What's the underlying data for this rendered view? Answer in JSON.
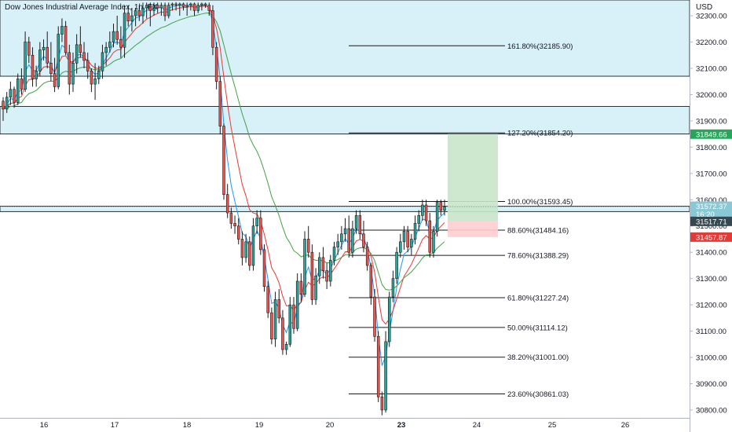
{
  "header": {
    "title": "Dow Jones Industrial Average Index, 1h, FX",
    "currency": "USD"
  },
  "chart_data": {
    "type": "candlestick",
    "title": "Dow Jones Industrial Average Index, 1h, FX",
    "ylim": [
      30770,
      32360
    ],
    "y_ticks": [
      {
        "value": 32300,
        "label": "32300.00"
      },
      {
        "value": 32200,
        "label": "32200.00"
      },
      {
        "value": 32100,
        "label": "32100.00"
      },
      {
        "value": 32000,
        "label": "32000.00"
      },
      {
        "value": 31900,
        "label": "31900.00"
      },
      {
        "value": 31800,
        "label": "31800.00"
      },
      {
        "value": 31700,
        "label": "31700.00"
      },
      {
        "value": 31600,
        "label": "31600.00"
      },
      {
        "value": 31500,
        "label": "31500.00"
      },
      {
        "value": 31400,
        "label": "31400.00"
      },
      {
        "value": 31300,
        "label": "31300.00"
      },
      {
        "value": 31200,
        "label": "31200.00"
      },
      {
        "value": 31100,
        "label": "31100.00"
      },
      {
        "value": 31000,
        "label": "31000.00"
      },
      {
        "value": 30900,
        "label": "30900.00"
      },
      {
        "value": 30800,
        "label": "30800.00"
      }
    ],
    "x_ticks": [
      "16",
      "17",
      "18",
      "19",
      "20",
      "23",
      "24",
      "25",
      "26"
    ],
    "x_ticks_bold": [
      "23"
    ],
    "fib_levels": [
      {
        "label": "161.80%(32185.90)",
        "value": 32185.9
      },
      {
        "label": "127.20%(31854.20)",
        "value": 31854.2
      },
      {
        "label": "100.00%(31593.45)",
        "value": 31593.45
      },
      {
        "label": "88.60%(31484.16)",
        "value": 31484.16
      },
      {
        "label": "78.60%(31388.29)",
        "value": 31388.29
      },
      {
        "label": "61.80%(31227.24)",
        "value": 31227.24
      },
      {
        "label": "50.00%(31114.12)",
        "value": 31114.12
      },
      {
        "label": "38.20%(31001.00)",
        "value": 31001.0
      },
      {
        "label": "23.60%(30861.03)",
        "value": 30861.03
      }
    ],
    "zones": [
      {
        "from": 32070,
        "to": 32360,
        "color": "#d8f0f8"
      },
      {
        "from": 31850,
        "to": 31955,
        "color": "#d8f0f8"
      },
      {
        "from": 31555,
        "to": 31575,
        "color": "#d8f0f8"
      }
    ],
    "price_labels": [
      {
        "value": 31849.66,
        "text": "31849.66",
        "color": "#26a65b"
      },
      {
        "value": 31572.37,
        "text": "31572.37",
        "sub": "16:20",
        "color": "#89c9d6"
      },
      {
        "value": 31517.71,
        "text": "31517.71",
        "color": "#37474f"
      },
      {
        "value": 31457.87,
        "text": "31457.87",
        "color": "#e53935"
      }
    ],
    "position": {
      "entry": 31517.71,
      "target": 31849.66,
      "stop": 31457.87
    },
    "candles": [
      [
        31975,
        31990,
        31900,
        31945
      ],
      [
        31945,
        32010,
        31930,
        31990
      ],
      [
        31990,
        32050,
        31960,
        32020
      ],
      [
        32020,
        32030,
        31950,
        31970
      ],
      [
        31970,
        32080,
        31960,
        32060
      ],
      [
        32060,
        32100,
        32000,
        32020
      ],
      [
        32020,
        32240,
        32010,
        32200
      ],
      [
        32200,
        32220,
        32120,
        32150
      ],
      [
        32150,
        32180,
        32030,
        32060
      ],
      [
        32060,
        32110,
        32030,
        32090
      ],
      [
        32090,
        32200,
        32070,
        32170
      ],
      [
        32170,
        32210,
        32130,
        32180
      ],
      [
        32180,
        32240,
        32100,
        32120
      ],
      [
        32120,
        32200,
        32050,
        32080
      ],
      [
        32080,
        32140,
        32010,
        32030
      ],
      [
        32030,
        32260,
        32020,
        32230
      ],
      [
        32230,
        32290,
        32200,
        32260
      ],
      [
        32260,
        32280,
        32150,
        32160
      ],
      [
        32160,
        32190,
        32000,
        32040
      ],
      [
        32040,
        32160,
        32010,
        32120
      ],
      [
        32120,
        32230,
        32080,
        32190
      ],
      [
        32190,
        32260,
        32140,
        32160
      ],
      [
        32160,
        32200,
        32100,
        32130
      ],
      [
        32130,
        32160,
        32060,
        32090
      ],
      [
        32090,
        32100,
        32010,
        32040
      ],
      [
        32040,
        32120,
        31980,
        32060
      ],
      [
        32060,
        32110,
        32040,
        32090
      ],
      [
        32090,
        32190,
        32060,
        32160
      ],
      [
        32160,
        32200,
        32110,
        32180
      ],
      [
        32180,
        32240,
        32160,
        32200
      ],
      [
        32200,
        32270,
        32180,
        32240
      ],
      [
        32240,
        32300,
        32190,
        32210
      ],
      [
        32210,
        32260,
        32140,
        32180
      ],
      [
        32180,
        32340,
        32140,
        32310
      ],
      [
        32310,
        32340,
        32260,
        32280
      ],
      [
        32280,
        32330,
        32240,
        32300
      ],
      [
        32300,
        32330,
        32260,
        32320
      ],
      [
        32320,
        32340,
        32280,
        32300
      ],
      [
        32300,
        32350,
        32270,
        32330
      ],
      [
        32330,
        32350,
        32290,
        32340
      ],
      [
        32340,
        32350,
        32260,
        32320
      ],
      [
        32320,
        32350,
        32300,
        32340
      ],
      [
        32340,
        32350,
        32310,
        32330
      ],
      [
        32330,
        32350,
        32300,
        32340
      ],
      [
        32340,
        32350,
        32280,
        32300
      ],
      [
        32300,
        32350,
        32290,
        32340
      ],
      [
        32340,
        32350,
        32320,
        32345
      ],
      [
        32345,
        32352,
        32320,
        32340
      ],
      [
        32340,
        32350,
        32300,
        32345
      ],
      [
        32345,
        32350,
        32320,
        32335
      ],
      [
        32335,
        32350,
        32300,
        32340
      ],
      [
        32340,
        32350,
        32320,
        32345
      ],
      [
        32345,
        32350,
        32300,
        32320
      ],
      [
        32320,
        32350,
        32310,
        32340
      ],
      [
        32340,
        32350,
        32320,
        32345
      ],
      [
        32345,
        32350,
        32330,
        32340
      ],
      [
        32340,
        32350,
        32300,
        32320
      ],
      [
        32320,
        32340,
        32150,
        32180
      ],
      [
        32180,
        32200,
        32020,
        32050
      ],
      [
        32050,
        32070,
        31850,
        31880
      ],
      [
        31880,
        31890,
        31600,
        31620
      ],
      [
        31620,
        31660,
        31530,
        31550
      ],
      [
        31550,
        31570,
        31490,
        31510
      ],
      [
        31510,
        31540,
        31470,
        31500
      ],
      [
        31500,
        31530,
        31430,
        31450
      ],
      [
        31450,
        31480,
        31350,
        31380
      ],
      [
        31380,
        31470,
        31360,
        31440
      ],
      [
        31440,
        31460,
        31330,
        31350
      ],
      [
        31350,
        31530,
        31330,
        31500
      ],
      [
        31500,
        31560,
        31470,
        31530
      ],
      [
        31530,
        31560,
        31390,
        31410
      ],
      [
        31410,
        31430,
        31250,
        31270
      ],
      [
        31270,
        31290,
        31150,
        31170
      ],
      [
        31170,
        31190,
        31050,
        31070
      ],
      [
        31070,
        31250,
        31040,
        31220
      ],
      [
        31220,
        31260,
        31130,
        31150
      ],
      [
        31150,
        31180,
        31010,
        31030
      ],
      [
        31030,
        31060,
        31010,
        31050
      ],
      [
        31050,
        31230,
        31040,
        31200
      ],
      [
        31200,
        31230,
        31090,
        31110
      ],
      [
        31110,
        31320,
        31100,
        31290
      ],
      [
        31290,
        31320,
        31210,
        31240
      ],
      [
        31240,
        31480,
        31230,
        31450
      ],
      [
        31450,
        31500,
        31380,
        31400
      ],
      [
        31400,
        31430,
        31200,
        31220
      ],
      [
        31220,
        31340,
        31200,
        31310
      ],
      [
        31310,
        31400,
        31280,
        31380
      ],
      [
        31380,
        31420,
        31300,
        31330
      ],
      [
        31330,
        31360,
        31260,
        31290
      ],
      [
        31290,
        31390,
        31270,
        31370
      ],
      [
        31370,
        31440,
        31350,
        31420
      ],
      [
        31420,
        31470,
        31390,
        31440
      ],
      [
        31440,
        31500,
        31410,
        31470
      ],
      [
        31470,
        31530,
        31440,
        31490
      ],
      [
        31490,
        31540,
        31380,
        31400
      ],
      [
        31400,
        31520,
        31380,
        31490
      ],
      [
        31490,
        31560,
        31470,
        31540
      ],
      [
        31540,
        31560,
        31450,
        31470
      ],
      [
        31470,
        31520,
        31400,
        31420
      ],
      [
        31420,
        31440,
        31330,
        31350
      ],
      [
        31350,
        31360,
        31200,
        31230
      ],
      [
        31230,
        31260,
        31060,
        31080
      ],
      [
        31080,
        31100,
        30830,
        30850
      ],
      [
        30850,
        30870,
        30780,
        30800
      ],
      [
        30800,
        31100,
        30790,
        31060
      ],
      [
        31060,
        31250,
        31040,
        31230
      ],
      [
        31230,
        31330,
        31210,
        31300
      ],
      [
        31300,
        31420,
        31280,
        31400
      ],
      [
        31400,
        31470,
        31380,
        31440
      ],
      [
        31440,
        31500,
        31410,
        31480
      ],
      [
        31480,
        31500,
        31400,
        31420
      ],
      [
        31420,
        31470,
        31390,
        31450
      ],
      [
        31450,
        31540,
        31430,
        31510
      ],
      [
        31510,
        31560,
        31480,
        31540
      ],
      [
        31540,
        31600,
        31520,
        31580
      ],
      [
        31580,
        31600,
        31500,
        31520
      ],
      [
        31520,
        31550,
        31380,
        31400
      ],
      [
        31400,
        31500,
        31380,
        31480
      ],
      [
        31480,
        31600,
        31460,
        31590
      ],
      [
        31590,
        31600,
        31540,
        31560
      ],
      [
        31560,
        31600,
        31540,
        31572
      ]
    ]
  }
}
